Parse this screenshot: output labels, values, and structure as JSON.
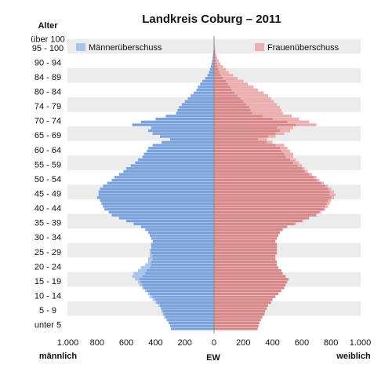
{
  "chart_data": {
    "type": "bar",
    "orientation": "horizontal",
    "subtype": "population-pyramid",
    "title": "Landkreis Coburg – 2011",
    "y_axis_title": "Alter",
    "x_axis_center_label": "EW",
    "x_left_label": "männlich",
    "x_right_label": "weiblich",
    "xlim": [
      -1000,
      1000
    ],
    "x_ticks": [
      -1000,
      -800,
      -600,
      -400,
      -200,
      0,
      200,
      400,
      600,
      800,
      1000
    ],
    "x_tick_labels": [
      "1.000",
      "800",
      "600",
      "400",
      "200",
      "0",
      "200",
      "400",
      "600",
      "800",
      "1.000"
    ],
    "y_age_range": [
      0,
      101
    ],
    "age_group_labels": [
      "unter 5",
      "5 - 9",
      "10 - 14",
      "15 - 19",
      "20 - 24",
      "25 - 29",
      "30 - 34",
      "35 - 39",
      "40 - 44",
      "45 - 49",
      "50 - 54",
      "55 - 59",
      "60 - 64",
      "65 - 69",
      "70 - 74",
      "74 - 79",
      "80 - 84",
      "84 - 89",
      "90 - 94",
      "95 - 100",
      "über 100"
    ],
    "age_group_positions": [
      2,
      7,
      12,
      17,
      22,
      27,
      32,
      37,
      42,
      47,
      52,
      57,
      62,
      67,
      72,
      77,
      82,
      87,
      92,
      97,
      100
    ],
    "legend": [
      {
        "name": "Männerüberschuss",
        "color": "#a9c4ea"
      },
      {
        "name": "Frauenüberschuss",
        "color": "#ecb0b2"
      }
    ],
    "colors": {
      "male": "#7aa2dc",
      "female": "#d88888",
      "male_surplus": "#a9c4ea",
      "female_surplus": "#ecb0b2",
      "band": "#ececec"
    },
    "series": [
      {
        "name": "männlich",
        "values": [
          295,
          300,
          310,
          325,
          340,
          350,
          360,
          365,
          380,
          400,
          420,
          440,
          450,
          470,
          490,
          510,
          520,
          540,
          560,
          550,
          520,
          500,
          470,
          450,
          450,
          440,
          440,
          440,
          430,
          430,
          420,
          430,
          440,
          450,
          470,
          500,
          550,
          600,
          650,
          700,
          720,
          750,
          760,
          770,
          780,
          800,
          790,
          790,
          780,
          760,
          730,
          700,
          680,
          650,
          620,
          600,
          570,
          540,
          520,
          490,
          480,
          460,
          450,
          420,
          360,
          300,
          370,
          420,
          450,
          430,
          560,
          500,
          400,
          330,
          260,
          250,
          240,
          220,
          200,
          180,
          160,
          140,
          120,
          110,
          95,
          80,
          60,
          45,
          35,
          28,
          22,
          18,
          13,
          10,
          7,
          5,
          3,
          2,
          1,
          1,
          0
        ]
      },
      {
        "name": "weiblich",
        "values": [
          300,
          305,
          310,
          320,
          330,
          345,
          350,
          360,
          370,
          390,
          400,
          420,
          440,
          460,
          480,
          490,
          500,
          510,
          490,
          470,
          460,
          440,
          430,
          430,
          420,
          420,
          430,
          430,
          430,
          430,
          420,
          430,
          440,
          450,
          470,
          500,
          560,
          610,
          650,
          700,
          730,
          760,
          780,
          790,
          800,
          820,
          830,
          820,
          800,
          780,
          750,
          720,
          700,
          670,
          640,
          620,
          600,
          580,
          560,
          540,
          540,
          520,
          500,
          480,
          400,
          360,
          420,
          480,
          520,
          540,
          700,
          650,
          580,
          530,
          470,
          460,
          450,
          430,
          410,
          390,
          370,
          340,
          300,
          270,
          230,
          200,
          160,
          130,
          100,
          80,
          60,
          42,
          30,
          20,
          14,
          9,
          6,
          4,
          2,
          1,
          0
        ]
      }
    ]
  }
}
